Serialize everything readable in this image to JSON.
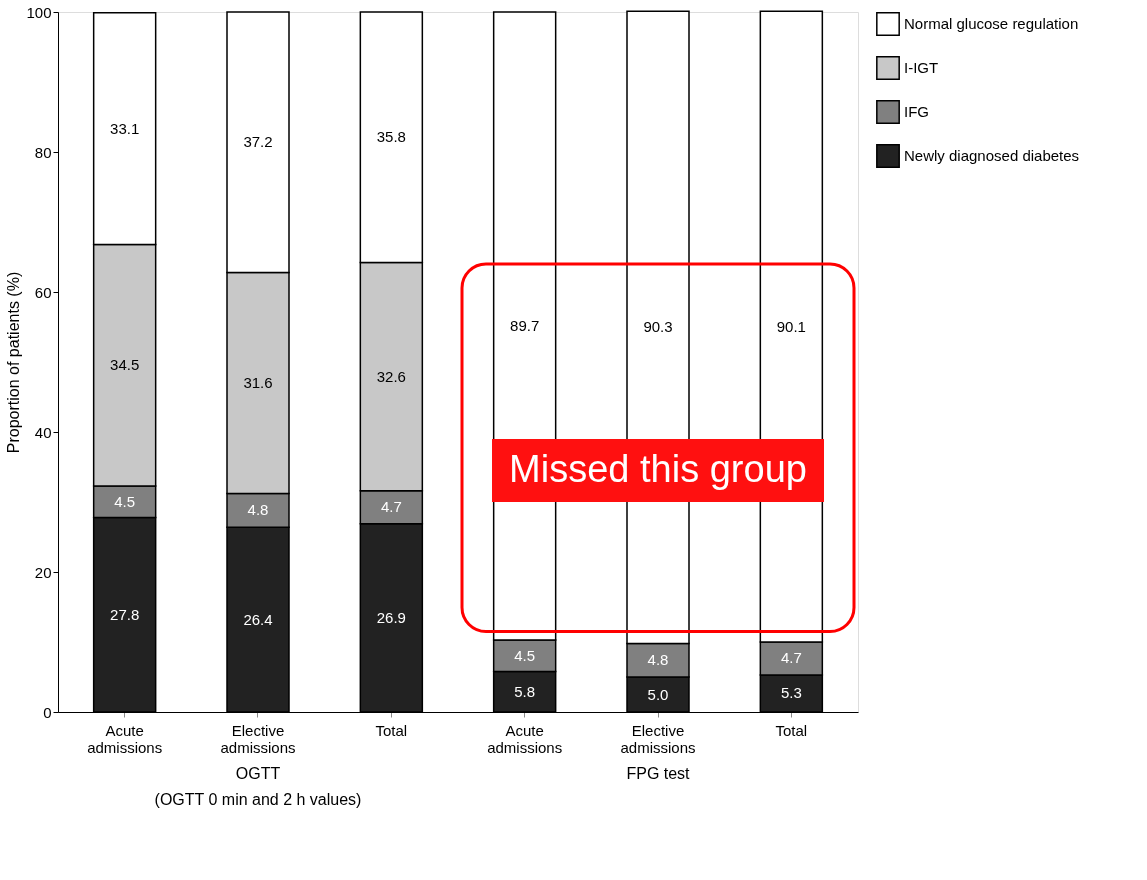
{
  "chart_data": {
    "type": "bar",
    "stacked": true,
    "ylabel": "Proportion of patients (%)",
    "categories": [
      "Acute admissions",
      "Elective admissions",
      "Total",
      "Acute admissions",
      "Elective admissions",
      "Total"
    ],
    "series": [
      {
        "name": "Newly diagnosed diabetes",
        "color": "#222222",
        "values": [
          27.8,
          26.4,
          26.9,
          5.8,
          5.0,
          5.3
        ],
        "value_labels": [
          "27.8",
          "26.4",
          "26.9",
          "5.8",
          "5.0",
          "5.3"
        ]
      },
      {
        "name": "IFG",
        "color": "#808080",
        "values": [
          4.5,
          4.8,
          4.7,
          4.5,
          4.8,
          4.7
        ],
        "value_labels": [
          "4.5",
          "4.8",
          "4.7",
          "4.5",
          "4.8",
          "4.7"
        ]
      },
      {
        "name": "I-IGT",
        "color": "#c8c8c8",
        "values": [
          34.5,
          31.6,
          32.6,
          null,
          null,
          null
        ],
        "value_labels": [
          "34.5",
          "31.6",
          "32.6",
          null,
          null,
          null
        ]
      },
      {
        "name": "Normal glucose regulation",
        "color": "#ffffff",
        "values": [
          33.1,
          37.2,
          35.8,
          89.7,
          90.3,
          90.1
        ],
        "value_labels": [
          "33.1",
          "37.2",
          "35.8",
          "89.7",
          "90.3",
          "90.1"
        ]
      }
    ],
    "ylim": [
      0,
      100
    ],
    "yticks": [
      0,
      20,
      40,
      60,
      80,
      100
    ],
    "grid": false,
    "legend": "top right",
    "annotations": [
      "OGTT",
      "(OGTT 0 min and 2 h values)",
      "FPG test",
      "Missed this group"
    ]
  }
}
